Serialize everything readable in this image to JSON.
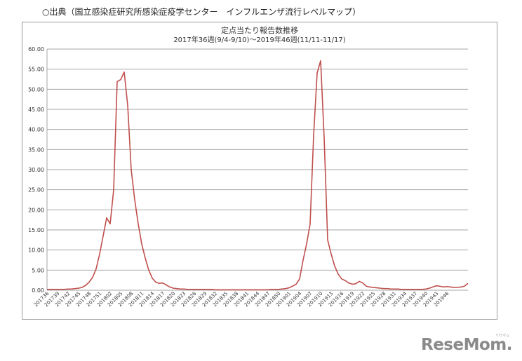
{
  "source_caption": "○出典（国立感染症研究所感染症疫学センター　インフルエンザ流行レベルマップ）",
  "brand": {
    "name": "ReseMom.",
    "sub": "リセマム"
  },
  "colors": {
    "line": "#c0504d",
    "grid": "#a6a6a6",
    "frame": "#9a9a9a"
  },
  "chart_data": {
    "type": "line",
    "title": "定点当たり報告数推移",
    "subtitle": "2017年36週(9/4-9/10)～2019年46週(11/11-11/17)",
    "xlabel": "",
    "ylabel": "",
    "ylim": [
      0,
      60
    ],
    "yticks": [
      "0.00",
      "5.00",
      "10.00",
      "15.00",
      "20.00",
      "25.00",
      "30.00",
      "35.00",
      "40.00",
      "45.00",
      "50.00",
      "55.00",
      "60.00"
    ],
    "grid": true,
    "legend": "none",
    "x_tick_labels": [
      "201736",
      "201739",
      "201742",
      "201745",
      "201748",
      "201751",
      "201802",
      "201805",
      "201808",
      "201811",
      "201814",
      "201817",
      "201820",
      "201823",
      "201826",
      "201829",
      "201832",
      "201835",
      "201838",
      "201841",
      "201844",
      "201847",
      "201850",
      "201901",
      "201904",
      "201907",
      "201910",
      "201913",
      "201916",
      "201919",
      "201922",
      "201925",
      "201928",
      "201931",
      "201934",
      "201937",
      "201940",
      "201943",
      "201946"
    ],
    "series": [
      {
        "values": [
          0.2,
          0.2,
          0.2,
          0.2,
          0.2,
          0.2,
          0.3,
          0.3,
          0.4,
          0.5,
          0.7,
          1.2,
          2.0,
          3.2,
          5.3,
          9.0,
          13.5,
          18.0,
          16.5,
          25.0,
          51.9,
          52.4,
          54.3,
          46.0,
          30.0,
          22.5,
          16.5,
          11.5,
          8.0,
          5.0,
          3.0,
          2.0,
          1.7,
          1.8,
          1.3,
          0.8,
          0.5,
          0.4,
          0.3,
          0.3,
          0.2,
          0.2,
          0.2,
          0.2,
          0.2,
          0.2,
          0.2,
          0.2,
          0.1,
          0.1,
          0.1,
          0.1,
          0.1,
          0.1,
          0.1,
          0.1,
          0.1,
          0.1,
          0.1,
          0.1,
          0.1,
          0.1,
          0.1,
          0.1,
          0.2,
          0.2,
          0.2,
          0.3,
          0.4,
          0.6,
          1.0,
          1.5,
          2.8,
          7.5,
          11.5,
          16.5,
          38.5,
          54.0,
          57.1,
          38.0,
          12.5,
          9.0,
          6.0,
          4.0,
          2.8,
          2.4,
          1.8,
          1.5,
          1.6,
          2.2,
          1.8,
          1.0,
          0.8,
          0.7,
          0.6,
          0.5,
          0.4,
          0.4,
          0.3,
          0.3,
          0.3,
          0.2,
          0.2,
          0.2,
          0.2,
          0.2,
          0.2,
          0.2,
          0.3,
          0.5,
          0.8,
          1.1,
          1.0,
          0.8,
          0.9,
          0.8,
          0.7,
          0.7,
          0.8,
          1.0,
          1.7
        ]
      }
    ]
  }
}
